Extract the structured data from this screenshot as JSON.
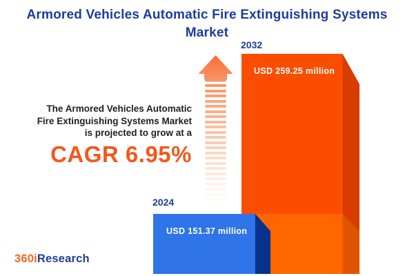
{
  "header": {
    "lines": [
      "Armored Vehicles Automatic Fire Extinguishing Systems",
      "Market"
    ]
  },
  "description": {
    "lines": [
      "The Armored Vehicles Automatic",
      "Fire Extinguishing Systems Market",
      "is projected to grow at a"
    ],
    "cagr": "CAGR 6.95%"
  },
  "chart_data": {
    "type": "bar",
    "title": "Armored Vehicles Automatic Fire Extinguishing Systems Market",
    "categories": [
      "2024",
      "2032"
    ],
    "values": [
      151.37,
      259.25
    ],
    "value_labels": [
      "USD 151.37 million",
      "USD 259.25 million"
    ],
    "unit": "USD million",
    "growth_metric": "CAGR 6.95%",
    "cagr_percent": 6.95,
    "grid": false,
    "legend_position": "none",
    "style": "3d-infographic-bars"
  },
  "logo": {
    "part1": "360i",
    "part2": "Research"
  },
  "colors": {
    "background": "#FFFFFF",
    "title_blue": "#1C3C9C",
    "text_dark": "#1E1E20",
    "cagr_orange": "#F4571C",
    "bar_2032_front": "#FB4D00",
    "bar_2032_side": "#D83C00",
    "bar_2032_lower_front": "#FF6600",
    "bar_2032_lower_side": "#DF5400",
    "bar_2024_front": "#2F74E8",
    "bar_2024_side": "#06318C",
    "arrow_head_top": "#F76F3A",
    "arrow_head_bottom": "#F9956A",
    "arrow_stripe": "#F78B52",
    "value_text": "#FFFFFF",
    "logo_orange": "#F26522",
    "logo_blue": "#1F3D9B"
  }
}
